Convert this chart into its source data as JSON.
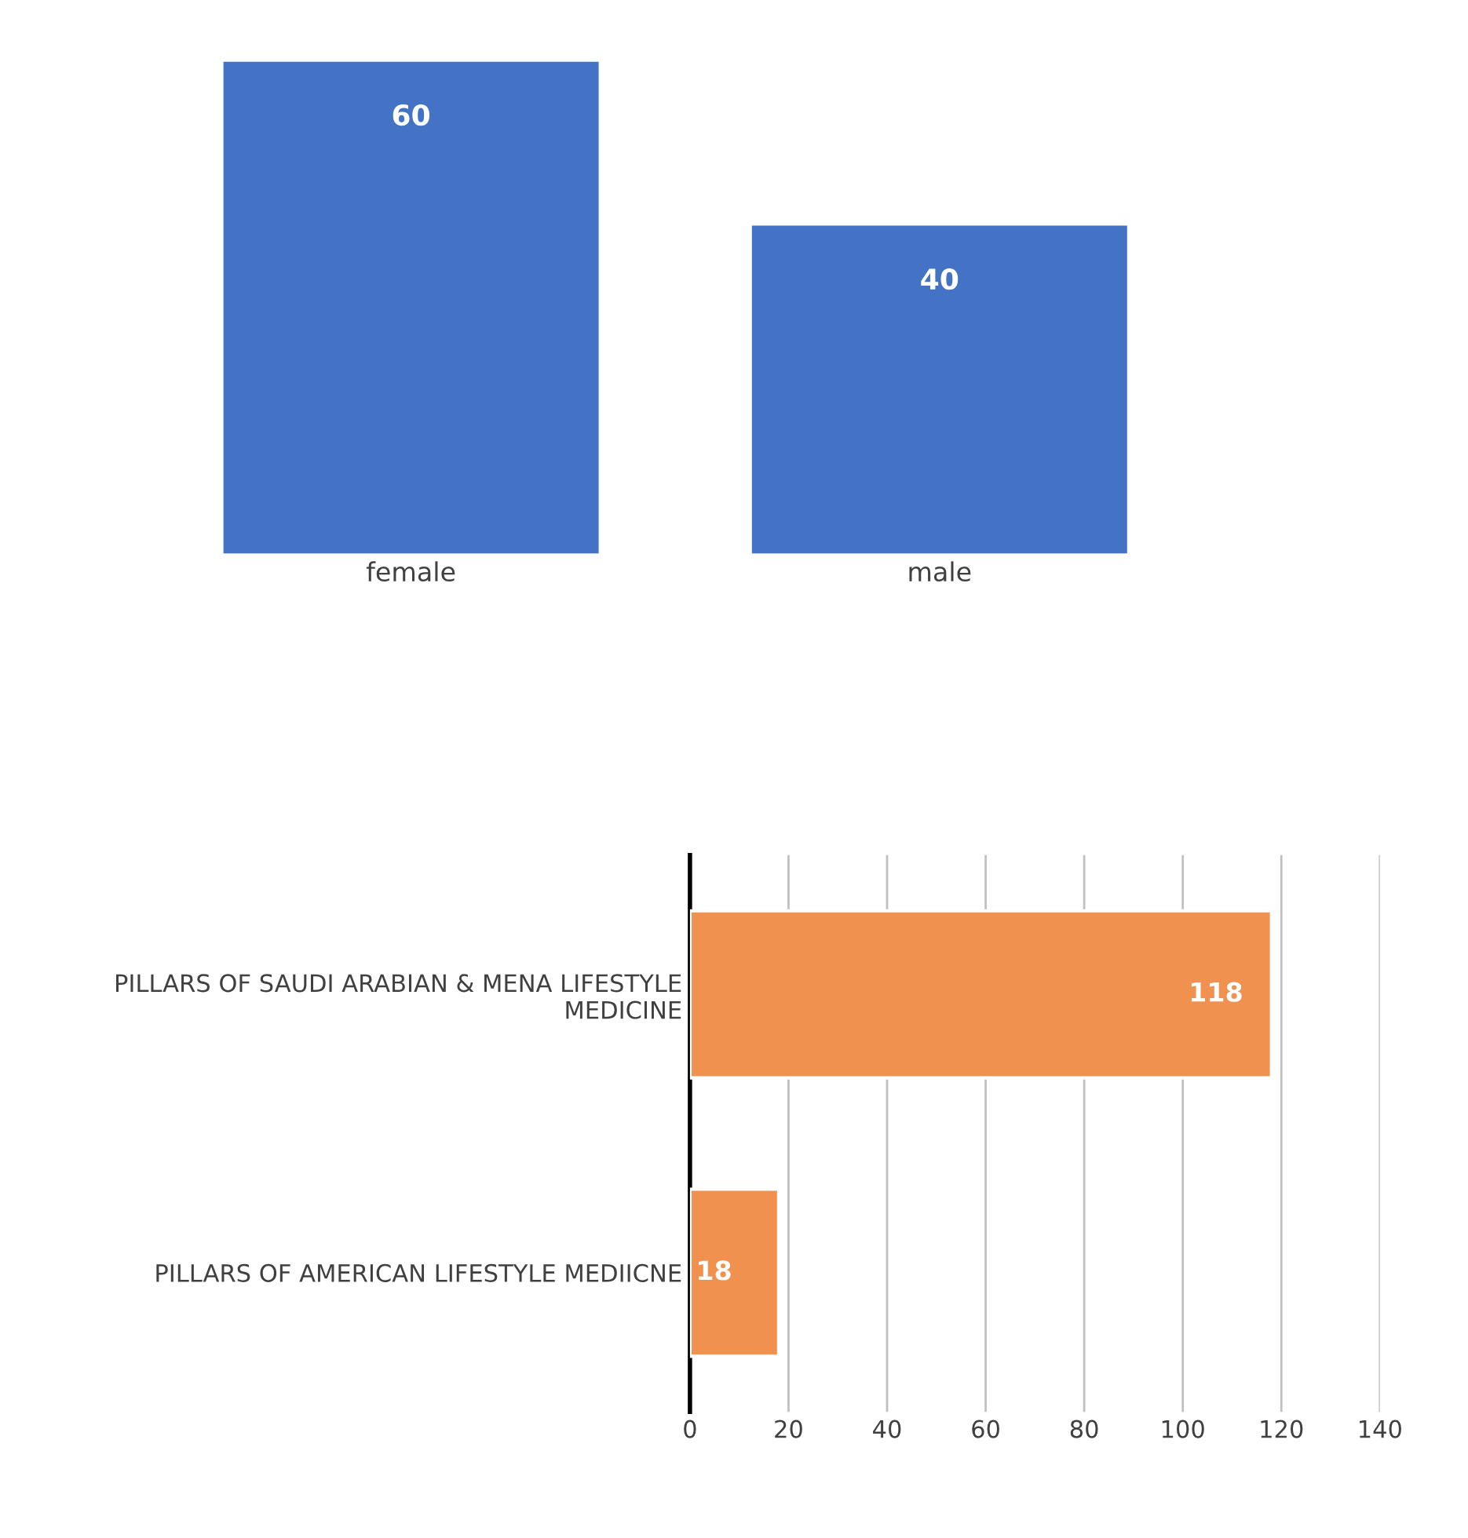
{
  "chart_data": [
    {
      "type": "bar",
      "categories": [
        "female",
        "male"
      ],
      "values": [
        60,
        40
      ],
      "color": "#4472c4",
      "data_labels": true,
      "grid": false,
      "tick_labels": "x"
    },
    {
      "type": "bar",
      "orientation": "horizontal",
      "categories": [
        "PILLARS OF SAUDI ARABIAN & MENA LIFESTYLE\nMEDICINE",
        "PILLARS OF AMERICAN LIFESTYLE MEDIICNE"
      ],
      "values": [
        118,
        18
      ],
      "color": "#f0914f",
      "data_labels": true,
      "xlim": [
        0,
        140
      ],
      "xticks": [
        0,
        20,
        40,
        60,
        80,
        100,
        120,
        140
      ],
      "grid": "x"
    }
  ]
}
